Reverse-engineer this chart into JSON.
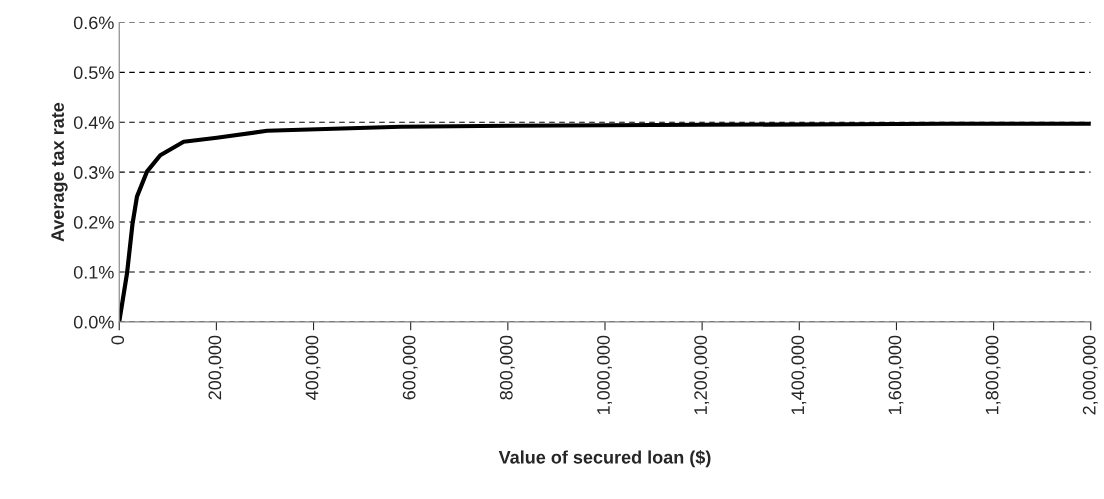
{
  "chart_data": {
    "type": "line",
    "xlabel": "Value of secured loan ($)",
    "ylabel": "Average tax rate",
    "x": [
      0,
      16000,
      27400,
      36500,
      57000,
      84500,
      132600,
      201000,
      304500,
      442000,
      579000,
      800000,
      1000000,
      1200000,
      1500000,
      1700000,
      2000000
    ],
    "series": [
      {
        "color": "#000000",
        "values": [
          0,
          0.097,
          0.197,
          0.251,
          0.301,
          0.334,
          0.361,
          0.369,
          0.383,
          0.387,
          0.391,
          0.393,
          0.394,
          0.395,
          0.396,
          0.397,
          0.397
        ]
      }
    ],
    "xlim": [
      0,
      2000000
    ],
    "xticks": [
      0,
      {
        "value": 200000,
        "label": "200,000"
      },
      {
        "value": 400000,
        "label": "400,000"
      },
      {
        "value": 600000,
        "label": "600,000"
      },
      {
        "value": 800000,
        "label": "800,000"
      },
      {
        "value": 1000000,
        "label": "1,000,000"
      },
      {
        "value": 1200000,
        "label": "1,200,000"
      },
      {
        "value": 1400000,
        "label": "1,400,000"
      },
      {
        "value": 1600000,
        "label": "1,600,000"
      },
      {
        "value": 1800000,
        "label": "1,800,000"
      },
      {
        "value": 2000000,
        "label": "2,000,000"
      }
    ],
    "ylim": [
      0,
      0.6
    ],
    "yticks": [
      {
        "value": 0,
        "label": "0.0%"
      },
      {
        "value": 0.1,
        "label": "0.1%"
      },
      {
        "value": 0.2,
        "label": "0.2%"
      },
      {
        "value": 0.3,
        "label": "0.3%"
      },
      {
        "value": 0.4,
        "label": "0.4%"
      },
      {
        "value": 0.5,
        "label": "0.5%"
      },
      {
        "value": 0.6,
        "label": "0.6%"
      }
    ],
    "grid": "y",
    "legend": false,
    "line_style": "solid"
  }
}
